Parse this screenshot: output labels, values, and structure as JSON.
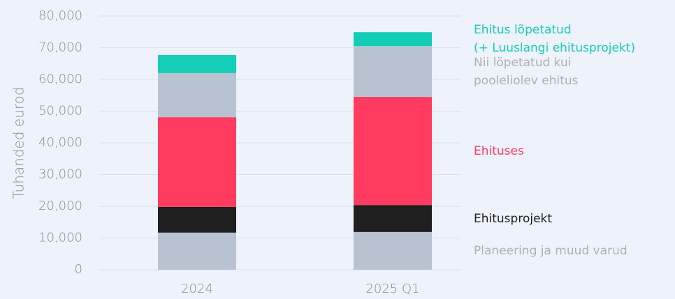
{
  "chart_data": {
    "type": "stacked_bar",
    "y_label": "Tuhanded eurod",
    "categories": [
      "2024",
      "2025 Q1"
    ],
    "series": [
      {
        "name": "Planeering ja muud varud",
        "color": "#b7c3d0",
        "values": [
          11700,
          11900
        ]
      },
      {
        "name": "Ehitusprojekt",
        "color": "#1f1f1f",
        "values": [
          8100,
          8500
        ]
      },
      {
        "name": "Ehituses",
        "color": "#ff3b5f",
        "values": [
          28300,
          34100
        ]
      },
      {
        "name": "Nii lõpetatud kui\npooleliolev ehitus",
        "color": "#b7c3d0",
        "values": [
          13900,
          16000
        ]
      },
      {
        "name": "Ehitus lõpetatud\n(+ Luuslangi ehitusprojekt)",
        "color": "#14cdb6",
        "values": [
          5700,
          4400
        ]
      }
    ],
    "ylim": [
      0,
      80000
    ],
    "yticks": [
      0,
      {
        "value": 10000,
        "label": "10,000"
      },
      {
        "value": 20000,
        "label": "20,000"
      },
      {
        "value": 30000,
        "label": "30,000"
      },
      {
        "value": 40000,
        "label": "40,000"
      },
      {
        "value": 50000,
        "label": "50,000"
      },
      {
        "value": 60000,
        "label": "60,000"
      },
      {
        "value": 70000,
        "label": "70,000"
      },
      {
        "value": 80000,
        "label": "80,000"
      }
    ],
    "grid": true,
    "legend": "right"
  }
}
